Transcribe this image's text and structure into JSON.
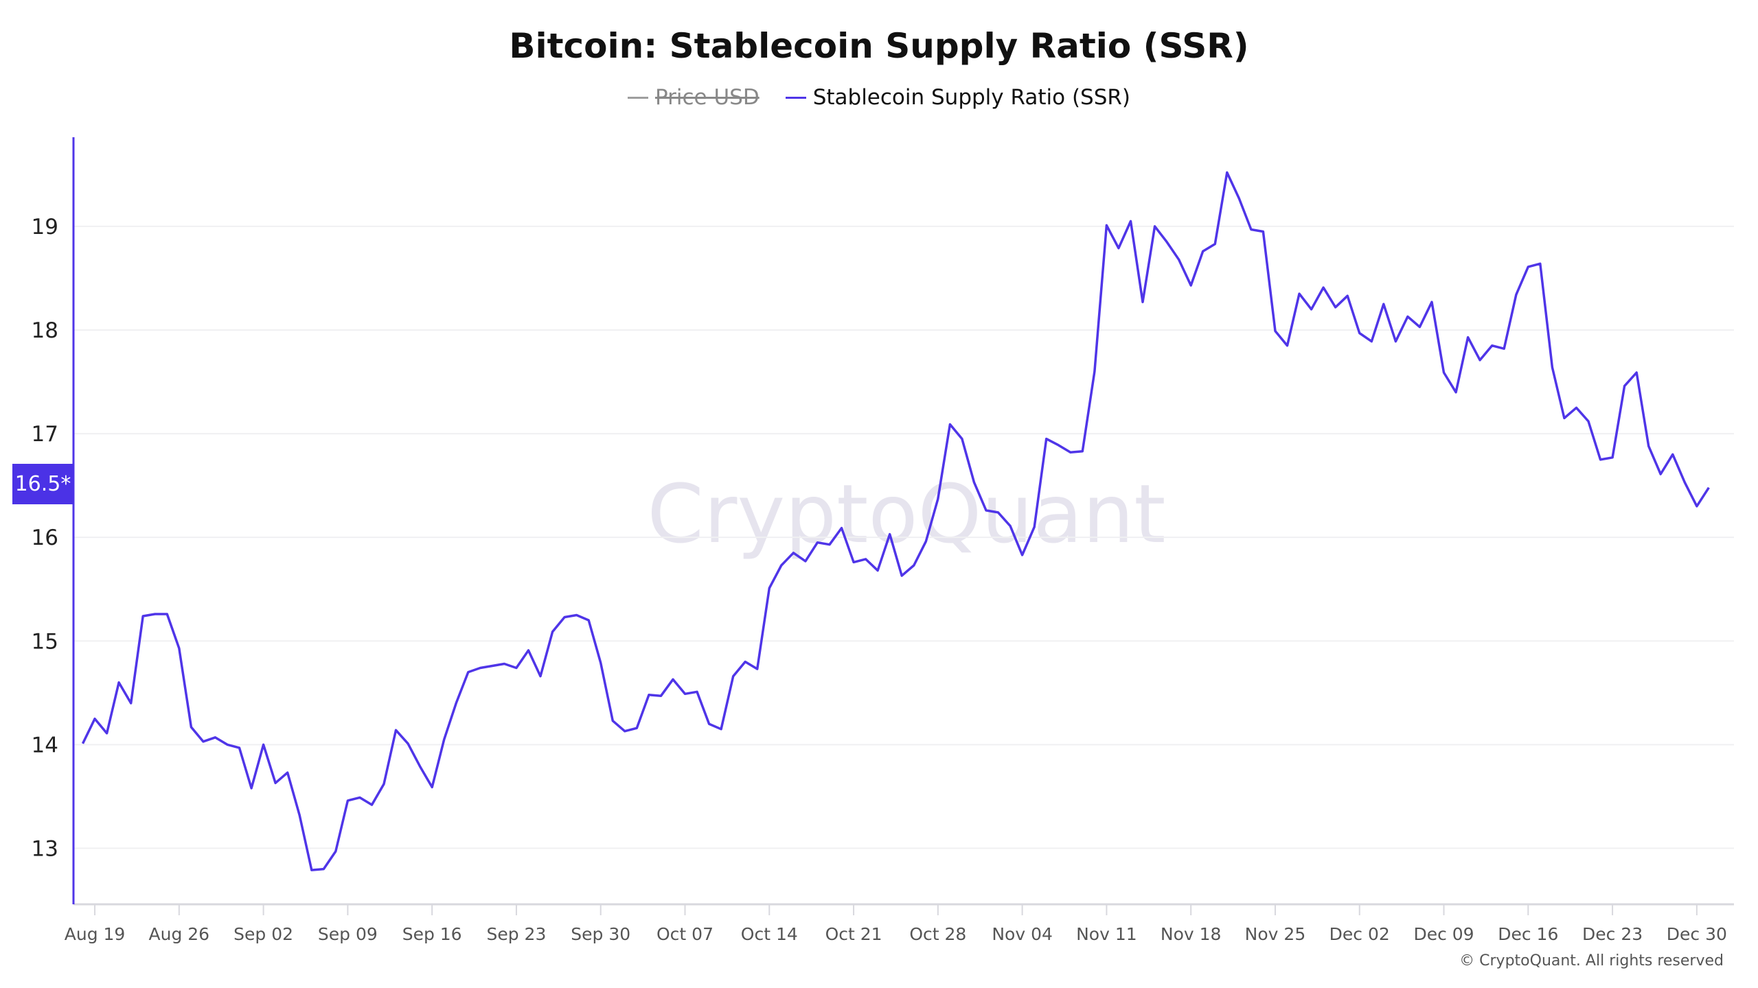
{
  "title": "Bitcoin: Stablecoin Supply Ratio (SSR)",
  "legend": [
    {
      "label": "Price USD",
      "color": "#9e9e9e",
      "hidden": true
    },
    {
      "label": "Stablecoin Supply Ratio (SSR)",
      "color": "#4f35e8",
      "hidden": false
    }
  ],
  "current_value_badge": "16.5*",
  "watermark": "CryptoQuant",
  "copyright": "© CryptoQuant. All rights reserved",
  "chart_data": {
    "type": "line",
    "title": "Bitcoin: Stablecoin Supply Ratio (SSR)",
    "xlabel": "",
    "ylabel": "",
    "ylim": [
      12.46,
      19.86
    ],
    "yticks": [
      13,
      14,
      15,
      16,
      17,
      18,
      19
    ],
    "xtick_labels": [
      "Aug 19",
      "Aug 26",
      "Sep 02",
      "Sep 09",
      "Sep 16",
      "Sep 23",
      "Sep 30",
      "Oct 07",
      "Oct 14",
      "Oct 21",
      "Oct 28",
      "Nov 04",
      "Nov 11",
      "Nov 18",
      "Nov 25",
      "Dec 02",
      "Dec 09",
      "Dec 16",
      "Dec 23",
      "Dec 30"
    ],
    "grid": "horizontal",
    "legend_position": "top",
    "x": [
      "Aug 18",
      "Aug 19",
      "Aug 20",
      "Aug 21",
      "Aug 22",
      "Aug 23",
      "Aug 24",
      "Aug 25",
      "Aug 26",
      "Aug 27",
      "Aug 28",
      "Aug 29",
      "Aug 30",
      "Aug 31",
      "Sep 01",
      "Sep 02",
      "Sep 03",
      "Sep 04",
      "Sep 05",
      "Sep 06",
      "Sep 07",
      "Sep 08",
      "Sep 09",
      "Sep 10",
      "Sep 11",
      "Sep 12",
      "Sep 13",
      "Sep 14",
      "Sep 15",
      "Sep 16",
      "Sep 17",
      "Sep 18",
      "Sep 19",
      "Sep 20",
      "Sep 21",
      "Sep 22",
      "Sep 23",
      "Sep 24",
      "Sep 25",
      "Sep 26",
      "Sep 27",
      "Sep 28",
      "Sep 29",
      "Sep 30",
      "Oct 01",
      "Oct 02",
      "Oct 03",
      "Oct 04",
      "Oct 05",
      "Oct 06",
      "Oct 07",
      "Oct 08",
      "Oct 09",
      "Oct 10",
      "Oct 11",
      "Oct 12",
      "Oct 13",
      "Oct 14",
      "Oct 15",
      "Oct 16",
      "Oct 17",
      "Oct 18",
      "Oct 19",
      "Oct 20",
      "Oct 21",
      "Oct 22",
      "Oct 23",
      "Oct 24",
      "Oct 25",
      "Oct 26",
      "Oct 27",
      "Oct 28",
      "Oct 29",
      "Oct 30",
      "Oct 31",
      "Nov 01",
      "Nov 02",
      "Nov 03",
      "Nov 04",
      "Nov 05",
      "Nov 06",
      "Nov 07",
      "Nov 08",
      "Nov 09",
      "Nov 10",
      "Nov 11",
      "Nov 12",
      "Nov 13",
      "Nov 14",
      "Nov 15",
      "Nov 16",
      "Nov 17",
      "Nov 18",
      "Nov 19",
      "Nov 20",
      "Nov 21",
      "Nov 22",
      "Nov 23",
      "Nov 24",
      "Nov 25",
      "Nov 26",
      "Nov 27",
      "Nov 28",
      "Nov 29",
      "Nov 30",
      "Dec 01",
      "Dec 02",
      "Dec 03",
      "Dec 04",
      "Dec 05",
      "Dec 06",
      "Dec 07",
      "Dec 08",
      "Dec 09",
      "Dec 10",
      "Dec 11",
      "Dec 12",
      "Dec 13",
      "Dec 14",
      "Dec 15",
      "Dec 16",
      "Dec 17",
      "Dec 18",
      "Dec 19",
      "Dec 20",
      "Dec 21",
      "Dec 22",
      "Dec 23",
      "Dec 24",
      "Dec 25",
      "Dec 26",
      "Dec 27",
      "Dec 28",
      "Dec 29",
      "Dec 30",
      "Dec 31"
    ],
    "series": [
      {
        "name": "Stablecoin Supply Ratio (SSR)",
        "values": [
          14.01,
          14.25,
          14.11,
          14.6,
          14.4,
          15.24,
          15.26,
          15.26,
          14.93,
          14.17,
          14.03,
          14.07,
          14.0,
          13.97,
          13.58,
          14.0,
          13.63,
          13.73,
          13.32,
          12.79,
          12.8,
          12.97,
          13.46,
          13.49,
          13.42,
          13.62,
          14.14,
          14.01,
          13.79,
          13.59,
          14.05,
          14.4,
          14.7,
          14.74,
          14.76,
          14.78,
          14.74,
          14.91,
          14.66,
          15.09,
          15.23,
          15.25,
          15.2,
          14.79,
          14.23,
          14.13,
          14.16,
          14.48,
          14.47,
          14.63,
          14.49,
          14.51,
          14.2,
          14.15,
          14.66,
          14.8,
          14.73,
          15.51,
          15.73,
          15.85,
          15.77,
          15.95,
          15.93,
          16.09,
          15.76,
          15.79,
          15.68,
          16.03,
          15.63,
          15.73,
          15.96,
          16.37,
          17.09,
          16.95,
          16.53,
          16.26,
          16.24,
          16.11,
          15.83,
          16.1,
          16.95,
          16.89,
          16.82,
          16.83,
          17.6,
          19.01,
          18.79,
          19.05,
          18.27,
          19.0,
          18.85,
          18.68,
          18.43,
          18.76,
          18.83,
          19.52,
          19.27,
          18.97,
          18.95,
          17.99,
          17.85,
          18.35,
          18.2,
          18.41,
          18.22,
          18.33,
          17.97,
          17.89,
          18.25,
          17.89,
          18.13,
          18.03,
          18.27,
          17.59,
          17.4,
          17.93,
          17.71,
          17.85,
          17.82,
          18.34,
          18.61,
          18.64,
          17.64,
          17.15,
          17.25,
          17.12,
          16.75,
          16.77,
          17.46,
          17.59,
          16.88,
          16.61,
          16.8,
          16.53,
          16.3,
          16.48
        ]
      }
    ]
  }
}
